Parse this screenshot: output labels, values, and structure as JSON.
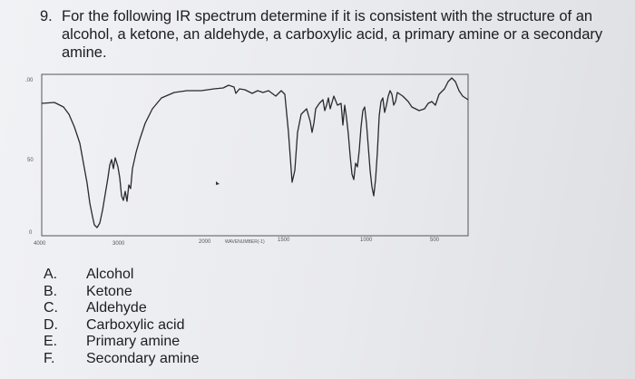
{
  "question": {
    "number": "9.",
    "text": "For the following IR spectrum determine if it is consistent with the structure of an alcohol, a ketone, an aldehyde, a carboxylic acid, a primary amine or a secondary amine."
  },
  "spectrum": {
    "y_top_label": ".00",
    "y_mid_label": "50",
    "y_bottom_label": "0",
    "x_tick_labels": [
      "4000",
      "3000",
      "2000",
      "1500",
      "1000",
      "500"
    ],
    "x_axis_label": "WAVENUMBER(-1)"
  },
  "options": [
    {
      "letter": "A.",
      "label": "Alcohol"
    },
    {
      "letter": "B.",
      "label": "Ketone"
    },
    {
      "letter": "C.",
      "label": "Aldehyde"
    },
    {
      "letter": "D.",
      "label": "Carboxylic acid"
    },
    {
      "letter": "E.",
      "label": "Primary amine"
    },
    {
      "letter": "F.",
      "label": "Secondary amine"
    }
  ]
}
